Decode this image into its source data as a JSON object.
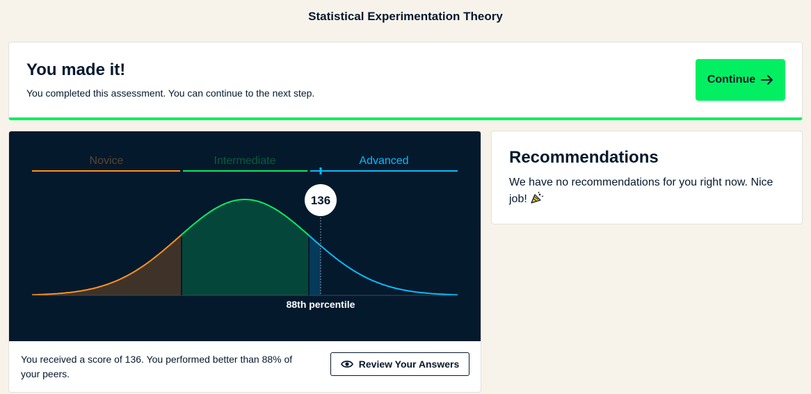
{
  "page": {
    "title": "Statistical Experimentation Theory"
  },
  "banner": {
    "title": "You made it!",
    "subtitle": "You completed this assessment. You can continue to the next step.",
    "continue_label": "Continue",
    "continue_icon": "arrow-right-icon",
    "accent_color": "#03ef62"
  },
  "chart_data": {
    "type": "area",
    "description_levels": [
      {
        "name": "Novice",
        "color": "#ff931e"
      },
      {
        "name": "Intermediate",
        "color": "#03ef62"
      },
      {
        "name": "Advanced",
        "color": "#06bdfc"
      }
    ],
    "score": 136,
    "percentile_label": "88th percentile",
    "percentile": 88
  },
  "result": {
    "score_text": "You received a score of 136. You performed better than 88% of your peers.",
    "review_label": "Review Your Answers",
    "review_icon": "eye-icon"
  },
  "recommendations": {
    "title": "Recommendations",
    "text": "We have no recommendations for you right now. Nice job!",
    "icon": "party-popper-icon"
  }
}
